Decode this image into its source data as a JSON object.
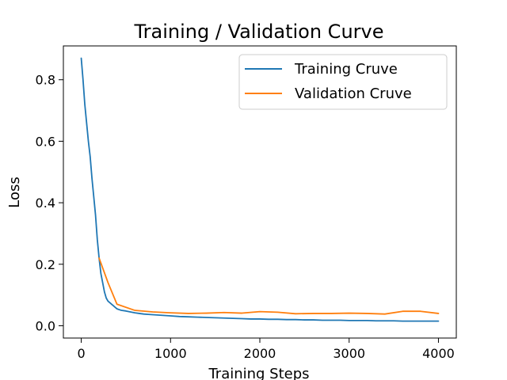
{
  "chart_data": {
    "type": "line",
    "title": "Training / Validation Curve",
    "xlabel": "Training Steps",
    "ylabel": "Loss",
    "xlim": [
      -200,
      4200
    ],
    "ylim": [
      -0.04,
      0.91
    ],
    "xticks": [
      0,
      1000,
      2000,
      3000,
      4000
    ],
    "xtick_labels": [
      "0",
      "1000",
      "2000",
      "3000",
      "4000"
    ],
    "yticks": [
      0.0,
      0.2,
      0.4,
      0.6,
      0.8
    ],
    "ytick_labels": [
      "0.0",
      "0.2",
      "0.4",
      "0.6",
      "0.8"
    ],
    "grid": false,
    "legend_position": "top-right",
    "series": [
      {
        "name": "Training Cruve",
        "color": "#1f77b4",
        "x": [
          0,
          20,
          40,
          60,
          80,
          100,
          120,
          140,
          160,
          180,
          200,
          220,
          240,
          260,
          280,
          300,
          320,
          340,
          360,
          380,
          400,
          450,
          500,
          550,
          600,
          650,
          700,
          750,
          800,
          850,
          900,
          950,
          1000,
          1100,
          1200,
          1300,
          1400,
          1500,
          1600,
          1700,
          1800,
          1900,
          2000,
          2100,
          2200,
          2300,
          2400,
          2500,
          2600,
          2700,
          2800,
          2900,
          3000,
          3100,
          3200,
          3300,
          3400,
          3500,
          3600,
          3700,
          3800,
          3900,
          4000
        ],
        "y": [
          0.87,
          0.8,
          0.72,
          0.66,
          0.6,
          0.55,
          0.48,
          0.42,
          0.36,
          0.28,
          0.22,
          0.17,
          0.14,
          0.11,
          0.09,
          0.08,
          0.075,
          0.07,
          0.065,
          0.06,
          0.055,
          0.05,
          0.048,
          0.045,
          0.042,
          0.04,
          0.038,
          0.037,
          0.036,
          0.035,
          0.034,
          0.033,
          0.032,
          0.03,
          0.029,
          0.028,
          0.027,
          0.026,
          0.025,
          0.024,
          0.023,
          0.022,
          0.022,
          0.021,
          0.021,
          0.02,
          0.02,
          0.019,
          0.019,
          0.018,
          0.018,
          0.018,
          0.017,
          0.017,
          0.017,
          0.016,
          0.016,
          0.016,
          0.015,
          0.015,
          0.015,
          0.015,
          0.015
        ]
      },
      {
        "name": "Validation Cruve",
        "color": "#ff7f0e",
        "x": [
          200,
          300,
          400,
          600,
          800,
          1000,
          1200,
          1400,
          1600,
          1800,
          2000,
          2200,
          2400,
          2600,
          2800,
          3000,
          3200,
          3400,
          3600,
          3800,
          4000
        ],
        "y": [
          0.22,
          0.14,
          0.07,
          0.05,
          0.045,
          0.042,
          0.04,
          0.041,
          0.043,
          0.041,
          0.046,
          0.044,
          0.039,
          0.04,
          0.04,
          0.041,
          0.04,
          0.038,
          0.047,
          0.047,
          0.04
        ]
      }
    ]
  }
}
